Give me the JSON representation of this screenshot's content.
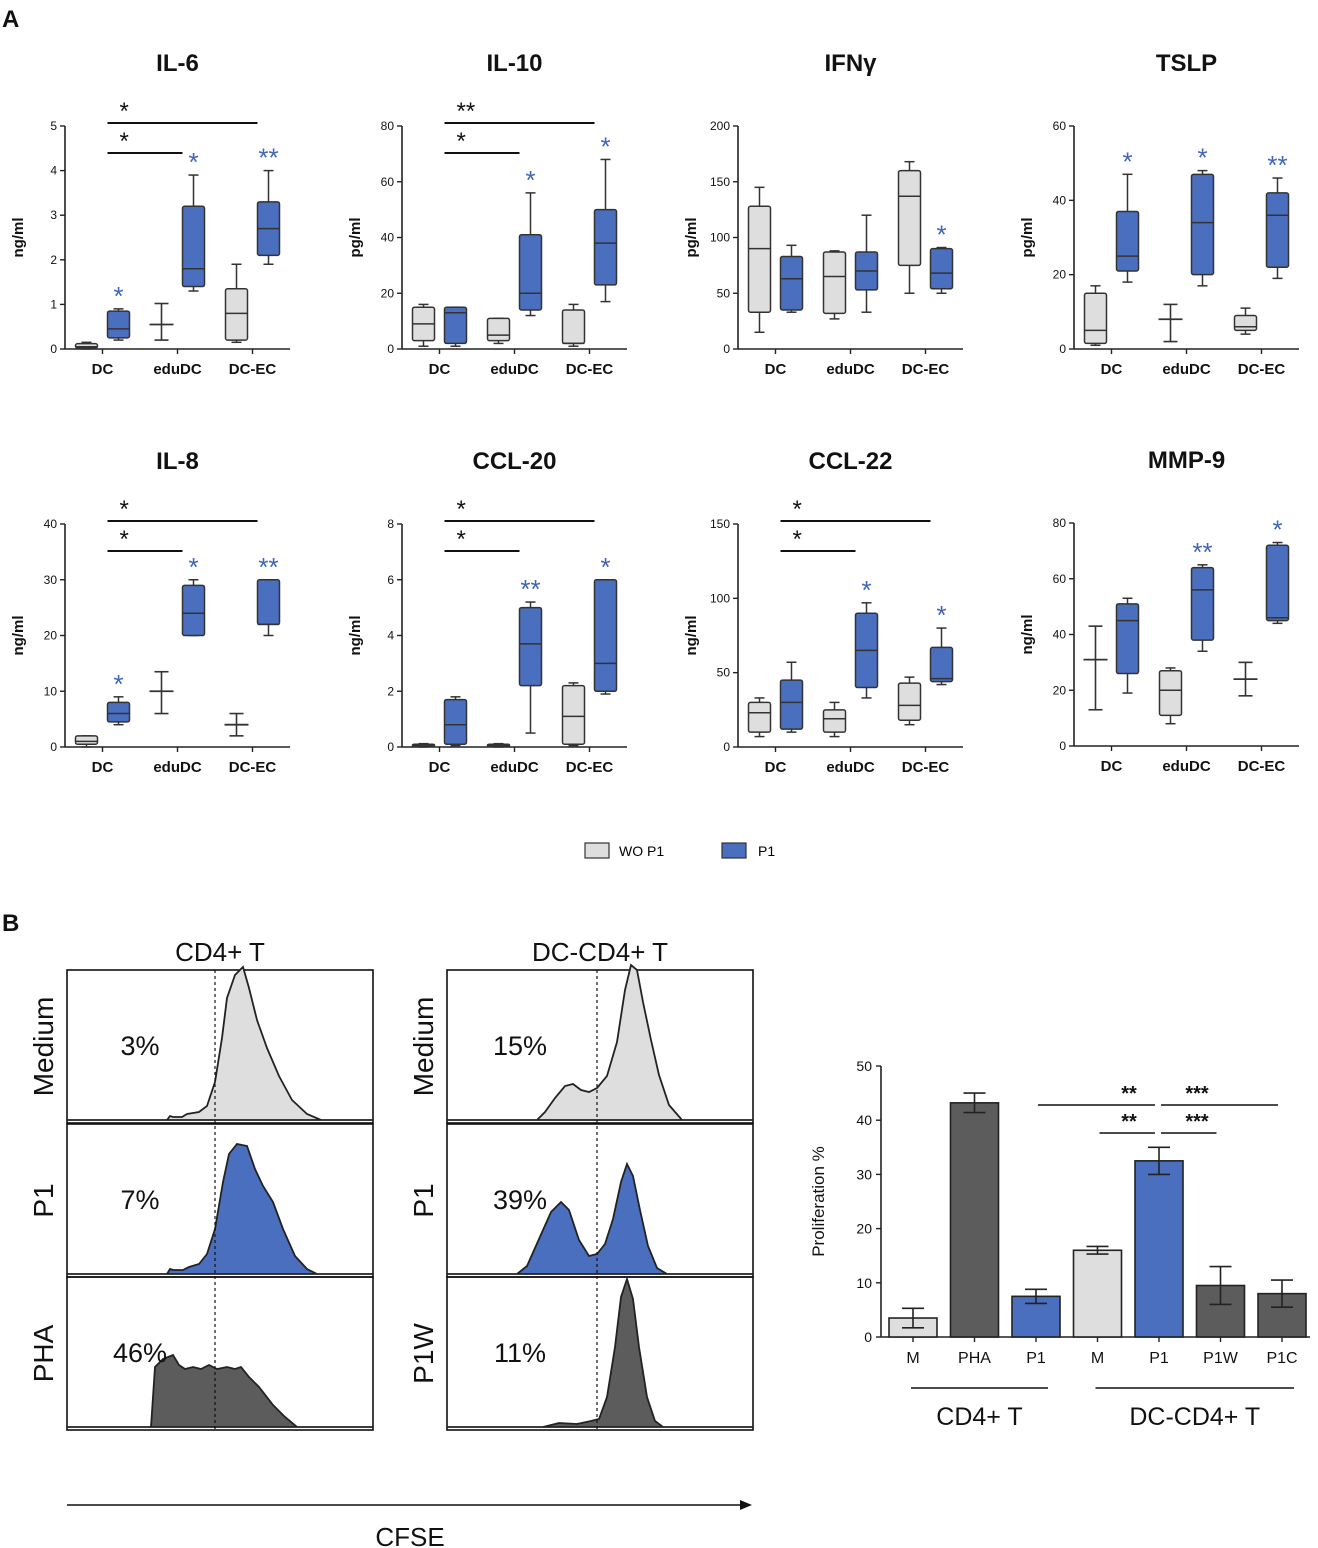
{
  "panel_labels": {
    "a": "A",
    "b": "B"
  },
  "colors": {
    "wo": "#dedede",
    "p1": "#4a6fbf",
    "dark": "#5c5c5c",
    "edge": "#333333",
    "sig_blue": "#3f66b8"
  },
  "legend": {
    "wo_label": "WO P1",
    "p1_label": "P1"
  },
  "chart_data": [
    {
      "type": "box",
      "title": "IL-6",
      "ylabel": "ng/ml",
      "ylim": [
        0,
        5
      ],
      "yticks": [
        0,
        1,
        2,
        3,
        4,
        5
      ],
      "categories": [
        "DC",
        "eduDC",
        "DC-EC"
      ],
      "series": [
        {
          "name": "WO P1",
          "boxes": [
            {
              "min": 0,
              "q1": 0.02,
              "median": 0.05,
              "q3": 0.12,
              "max": 0.15
            },
            {
              "style": "errbar",
              "low": 0.2,
              "mid": 0.55,
              "high": 1.02
            },
            {
              "min": 0.15,
              "q1": 0.2,
              "median": 0.8,
              "q3": 1.35,
              "max": 1.9
            }
          ]
        },
        {
          "name": "P1",
          "boxes": [
            {
              "min": 0.2,
              "q1": 0.25,
              "median": 0.45,
              "q3": 0.85,
              "max": 0.9
            },
            {
              "min": 1.3,
              "q1": 1.4,
              "median": 1.8,
              "q3": 3.2,
              "max": 3.9
            },
            {
              "min": 1.9,
              "q1": 2.1,
              "median": 2.7,
              "q3": 3.3,
              "max": 4.0
            }
          ]
        }
      ],
      "p1_stars": [
        "*",
        "*",
        "**"
      ],
      "brackets": [
        {
          "label": "*",
          "from": 0,
          "to": 2,
          "level": 1
        },
        {
          "label": "*",
          "from": 0,
          "to": 1,
          "level": 2
        }
      ]
    },
    {
      "type": "box",
      "title": "IL-10",
      "ylabel": "pg/ml",
      "ylim": [
        0,
        80
      ],
      "yticks": [
        0,
        20,
        40,
        60,
        80
      ],
      "categories": [
        "DC",
        "eduDC",
        "DC-EC"
      ],
      "series": [
        {
          "name": "WO P1",
          "boxes": [
            {
              "min": 1,
              "q1": 3,
              "median": 9,
              "q3": 15,
              "max": 16
            },
            {
              "min": 2,
              "q1": 3,
              "median": 5,
              "q3": 11,
              "max": 11
            },
            {
              "min": 1,
              "q1": 2,
              "median": 2,
              "q3": 14,
              "max": 16
            }
          ]
        },
        {
          "name": "P1",
          "boxes": [
            {
              "min": 1,
              "q1": 2,
              "median": 13,
              "q3": 15,
              "max": 15
            },
            {
              "min": 12,
              "q1": 14,
              "median": 20,
              "q3": 41,
              "max": 56
            },
            {
              "min": 17,
              "q1": 23,
              "median": 38,
              "q3": 50,
              "max": 68
            }
          ]
        }
      ],
      "p1_stars": [
        "",
        "*",
        "*"
      ],
      "brackets": [
        {
          "label": "**",
          "from": 0,
          "to": 2,
          "level": 1
        },
        {
          "label": "*",
          "from": 0,
          "to": 1,
          "level": 2
        }
      ]
    },
    {
      "type": "box",
      "title": "IFNγ",
      "ylabel": "pg/ml",
      "ylim": [
        0,
        200
      ],
      "yticks": [
        0,
        50,
        100,
        150,
        200
      ],
      "categories": [
        "DC",
        "eduDC",
        "DC-EC"
      ],
      "series": [
        {
          "name": "WO P1",
          "boxes": [
            {
              "min": 15,
              "q1": 33,
              "median": 90,
              "q3": 128,
              "max": 145
            },
            {
              "min": 27,
              "q1": 32,
              "median": 65,
              "q3": 87,
              "max": 88
            },
            {
              "min": 50,
              "q1": 75,
              "median": 137,
              "q3": 160,
              "max": 168
            }
          ]
        },
        {
          "name": "P1",
          "boxes": [
            {
              "min": 33,
              "q1": 35,
              "median": 63,
              "q3": 83,
              "max": 93
            },
            {
              "min": 33,
              "q1": 53,
              "median": 70,
              "q3": 87,
              "max": 120
            },
            {
              "min": 50,
              "q1": 54,
              "median": 68,
              "q3": 90,
              "max": 91
            }
          ]
        }
      ],
      "p1_stars": [
        "",
        "",
        "*"
      ],
      "brackets": []
    },
    {
      "type": "box",
      "title": "TSLP",
      "ylabel": "pg/ml",
      "ylim": [
        0,
        60
      ],
      "yticks": [
        0,
        20,
        40,
        60
      ],
      "categories": [
        "DC",
        "eduDC",
        "DC-EC"
      ],
      "series": [
        {
          "name": "WO P1",
          "boxes": [
            {
              "min": 1,
              "q1": 1.5,
              "median": 5,
              "q3": 15,
              "max": 17
            },
            {
              "style": "errbar",
              "low": 2,
              "mid": 8,
              "high": 12
            },
            {
              "min": 4,
              "q1": 5,
              "median": 6,
              "q3": 9,
              "max": 11
            }
          ]
        },
        {
          "name": "P1",
          "boxes": [
            {
              "min": 18,
              "q1": 21,
              "median": 25,
              "q3": 37,
              "max": 47
            },
            {
              "min": 17,
              "q1": 20,
              "median": 34,
              "q3": 47,
              "max": 48
            },
            {
              "min": 19,
              "q1": 22,
              "median": 36,
              "q3": 42,
              "max": 46
            }
          ]
        }
      ],
      "p1_stars": [
        "*",
        "*",
        "**"
      ],
      "brackets": []
    },
    {
      "type": "box",
      "title": "IL-8",
      "ylabel": "ng/ml",
      "ylim": [
        0,
        40
      ],
      "yticks": [
        0,
        10,
        20,
        30,
        40
      ],
      "categories": [
        "DC",
        "eduDC",
        "DC-EC"
      ],
      "series": [
        {
          "name": "WO P1",
          "boxes": [
            {
              "min": 0,
              "q1": 0.5,
              "median": 1,
              "q3": 2,
              "max": 2
            },
            {
              "style": "errbar",
              "low": 6,
              "mid": 10,
              "high": 13.5
            },
            {
              "style": "errbar",
              "low": 2,
              "mid": 4,
              "high": 6
            }
          ]
        },
        {
          "name": "P1",
          "boxes": [
            {
              "min": 4,
              "q1": 4.5,
              "median": 6,
              "q3": 8,
              "max": 9
            },
            {
              "min": 20,
              "q1": 20,
              "median": 24,
              "q3": 29,
              "max": 30
            },
            {
              "min": 20,
              "q1": 22,
              "median": 22,
              "q3": 30,
              "max": 30
            }
          ]
        }
      ],
      "p1_stars": [
        "*",
        "*",
        "**"
      ],
      "brackets": [
        {
          "label": "*",
          "from": 0,
          "to": 2,
          "level": 1
        },
        {
          "label": "*",
          "from": 0,
          "to": 1,
          "level": 2
        }
      ]
    },
    {
      "type": "box",
      "title": "CCL-20",
      "ylabel": "ng/ml",
      "ylim": [
        0,
        8
      ],
      "yticks": [
        0,
        2,
        4,
        6,
        8
      ],
      "categories": [
        "DC",
        "eduDC",
        "DC-EC"
      ],
      "series": [
        {
          "name": "WO P1",
          "boxes": [
            {
              "min": 0,
              "q1": 0.02,
              "median": 0.05,
              "q3": 0.1,
              "max": 0.12
            },
            {
              "min": 0,
              "q1": 0.02,
              "median": 0.05,
              "q3": 0.1,
              "max": 0.12
            },
            {
              "min": 0.05,
              "q1": 0.1,
              "median": 1.1,
              "q3": 2.2,
              "max": 2.3
            }
          ]
        },
        {
          "name": "P1",
          "boxes": [
            {
              "min": 0.05,
              "q1": 0.1,
              "median": 0.8,
              "q3": 1.7,
              "max": 1.8
            },
            {
              "min": 0.5,
              "q1": 2.2,
              "median": 3.7,
              "q3": 5.0,
              "max": 5.2
            },
            {
              "min": 1.9,
              "q1": 2.0,
              "median": 3.0,
              "q3": 6.0,
              "max": 6.0
            }
          ]
        }
      ],
      "p1_stars": [
        "",
        "**",
        "*"
      ],
      "brackets": [
        {
          "label": "*",
          "from": 0,
          "to": 2,
          "level": 1
        },
        {
          "label": "*",
          "from": 0,
          "to": 1,
          "level": 2
        }
      ]
    },
    {
      "type": "box",
      "title": "CCL-22",
      "ylabel": "ng/ml",
      "ylim": [
        0,
        150
      ],
      "yticks": [
        0,
        50,
        100,
        150
      ],
      "categories": [
        "DC",
        "eduDC",
        "DC-EC"
      ],
      "series": [
        {
          "name": "WO P1",
          "boxes": [
            {
              "min": 7,
              "q1": 10,
              "median": 23,
              "q3": 30,
              "max": 33
            },
            {
              "min": 7,
              "q1": 10,
              "median": 19,
              "q3": 25,
              "max": 30
            },
            {
              "min": 15,
              "q1": 18,
              "median": 28,
              "q3": 43,
              "max": 47
            }
          ]
        },
        {
          "name": "P1",
          "boxes": [
            {
              "min": 10,
              "q1": 12,
              "median": 30,
              "q3": 45,
              "max": 57
            },
            {
              "min": 33,
              "q1": 40,
              "median": 65,
              "q3": 90,
              "max": 97
            },
            {
              "min": 42,
              "q1": 44,
              "median": 46,
              "q3": 67,
              "max": 80
            }
          ]
        }
      ],
      "p1_stars": [
        "",
        "*",
        "*"
      ],
      "brackets": [
        {
          "label": "*",
          "from": 0,
          "to": 2,
          "level": 1
        },
        {
          "label": "*",
          "from": 0,
          "to": 1,
          "level": 2
        }
      ]
    },
    {
      "type": "box",
      "title": "MMP-9",
      "ylabel": "ng/ml",
      "ylim": [
        0,
        80
      ],
      "yticks": [
        0,
        20,
        40,
        60,
        80
      ],
      "categories": [
        "DC",
        "eduDC",
        "DC-EC"
      ],
      "series": [
        {
          "name": "WO P1",
          "boxes": [
            {
              "style": "errbar",
              "low": 13,
              "mid": 31,
              "high": 43
            },
            {
              "min": 8,
              "q1": 11,
              "median": 20,
              "q3": 27,
              "max": 28
            },
            {
              "style": "errbar",
              "low": 18,
              "mid": 24,
              "high": 30
            }
          ]
        },
        {
          "name": "P1",
          "boxes": [
            {
              "min": 19,
              "q1": 26,
              "median": 45,
              "q3": 51,
              "max": 53
            },
            {
              "min": 34,
              "q1": 38,
              "median": 56,
              "q3": 64,
              "max": 65
            },
            {
              "min": 44,
              "q1": 45,
              "median": 46,
              "q3": 72,
              "max": 73
            }
          ]
        }
      ],
      "p1_stars": [
        "",
        "**",
        "*"
      ],
      "brackets": []
    },
    {
      "type": "histogram",
      "title": "CD4+ T",
      "xlabel": "CFSE",
      "rows": [
        {
          "label": "Medium",
          "percent": "3%",
          "fill": "light"
        },
        {
          "label": "P1",
          "percent": "7%",
          "fill": "blue"
        },
        {
          "label": "PHA",
          "percent": "46%",
          "fill": "dark"
        }
      ]
    },
    {
      "type": "histogram",
      "title": "DC-CD4+ T",
      "xlabel": "CFSE",
      "rows": [
        {
          "label": "Medium",
          "percent": "15%",
          "fill": "light"
        },
        {
          "label": "P1",
          "percent": "39%",
          "fill": "blue"
        },
        {
          "label": "P1W",
          "percent": "11%",
          "fill": "dark"
        }
      ]
    },
    {
      "type": "bar",
      "title": "",
      "ylabel": "Proliferation %",
      "ylim": [
        0,
        50
      ],
      "yticks": [
        0,
        10,
        20,
        30,
        40,
        50
      ],
      "categories": [
        "M",
        "PHA",
        "P1",
        "M",
        "P1",
        "P1W",
        "P1C"
      ],
      "values": [
        3.5,
        43.2,
        7.5,
        16,
        32.5,
        9.5,
        8
      ],
      "errors": [
        1.8,
        1.8,
        1.3,
        0.7,
        2.5,
        3.5,
        2.5
      ],
      "fills": [
        "light",
        "dark",
        "blue",
        "light",
        "blue",
        "dark",
        "dark"
      ],
      "groups": [
        {
          "label": "CD4+ T",
          "from": 0,
          "to": 2
        },
        {
          "label": "DC-CD4+ T",
          "from": 3,
          "to": 6
        }
      ],
      "brackets": [
        {
          "label": "**",
          "from": 2,
          "to": 4,
          "level": 1
        },
        {
          "label": "***",
          "from": 4,
          "to": 6,
          "level": 1
        },
        {
          "label": "**",
          "from": 3,
          "to": 4,
          "level": 2
        },
        {
          "label": "***",
          "from": 4,
          "to": 5,
          "level": 2
        }
      ]
    }
  ]
}
